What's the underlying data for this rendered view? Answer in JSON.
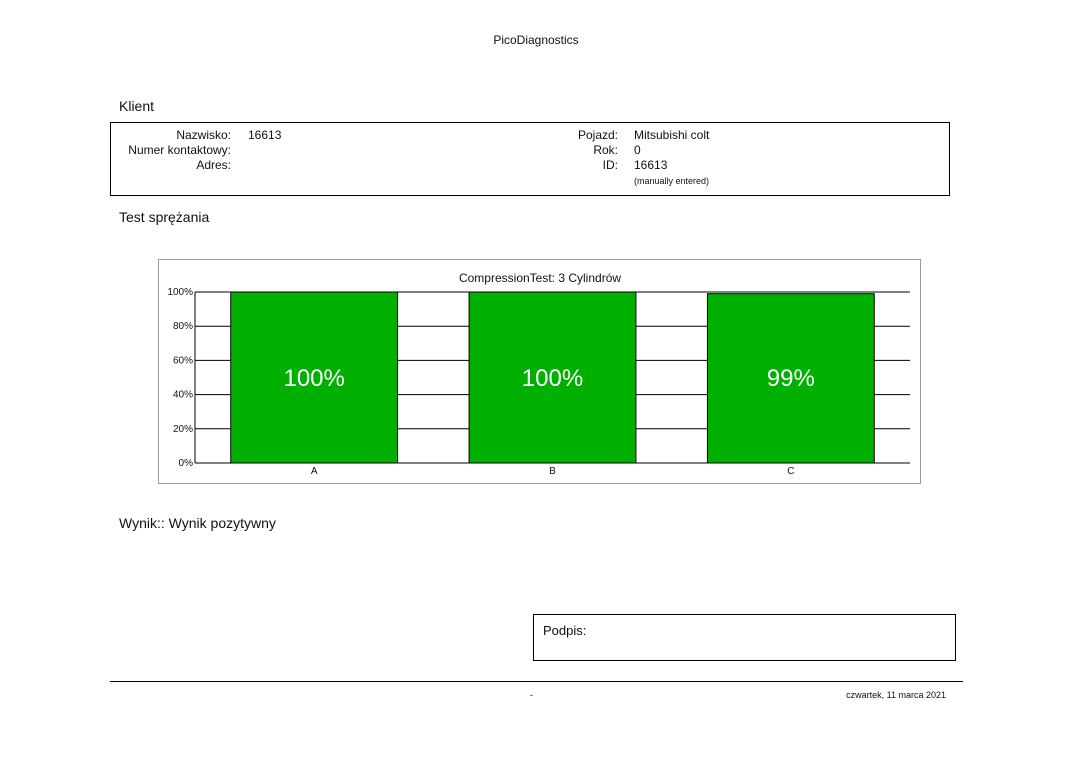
{
  "header": {
    "app_title": "PicoDiagnostics"
  },
  "client_section": {
    "title": "Klient",
    "left": [
      {
        "label": "Nazwisko:",
        "value": "16613"
      },
      {
        "label": "Numer kontaktowy:",
        "value": ""
      },
      {
        "label": "Adres:",
        "value": ""
      }
    ],
    "right": [
      {
        "label": "Pojazd:",
        "value": "Mitsubishi colt"
      },
      {
        "label": "Rok:",
        "value": "0"
      },
      {
        "label": "ID:",
        "value": "16613"
      }
    ],
    "id_note": "(manually entered)"
  },
  "test_section": {
    "title": "Test sprężania"
  },
  "chart_data": {
    "type": "bar",
    "title": "CompressionTest: 3 Cylindrów",
    "categories": [
      "A",
      "B",
      "C"
    ],
    "values": [
      100,
      100,
      99
    ],
    "value_labels": [
      "100%",
      "100%",
      "99%"
    ],
    "ylim": [
      0,
      100
    ],
    "yticks": [
      "0%",
      "20%",
      "40%",
      "60%",
      "80%",
      "100%"
    ],
    "grid": true,
    "bar_color": "#00b000"
  },
  "result": {
    "text": "Wynik:: Wynik pozytywny"
  },
  "signature": {
    "label": "Podpis:"
  },
  "footer": {
    "page": "-",
    "date": "czwartek, 11 marca 2021"
  }
}
